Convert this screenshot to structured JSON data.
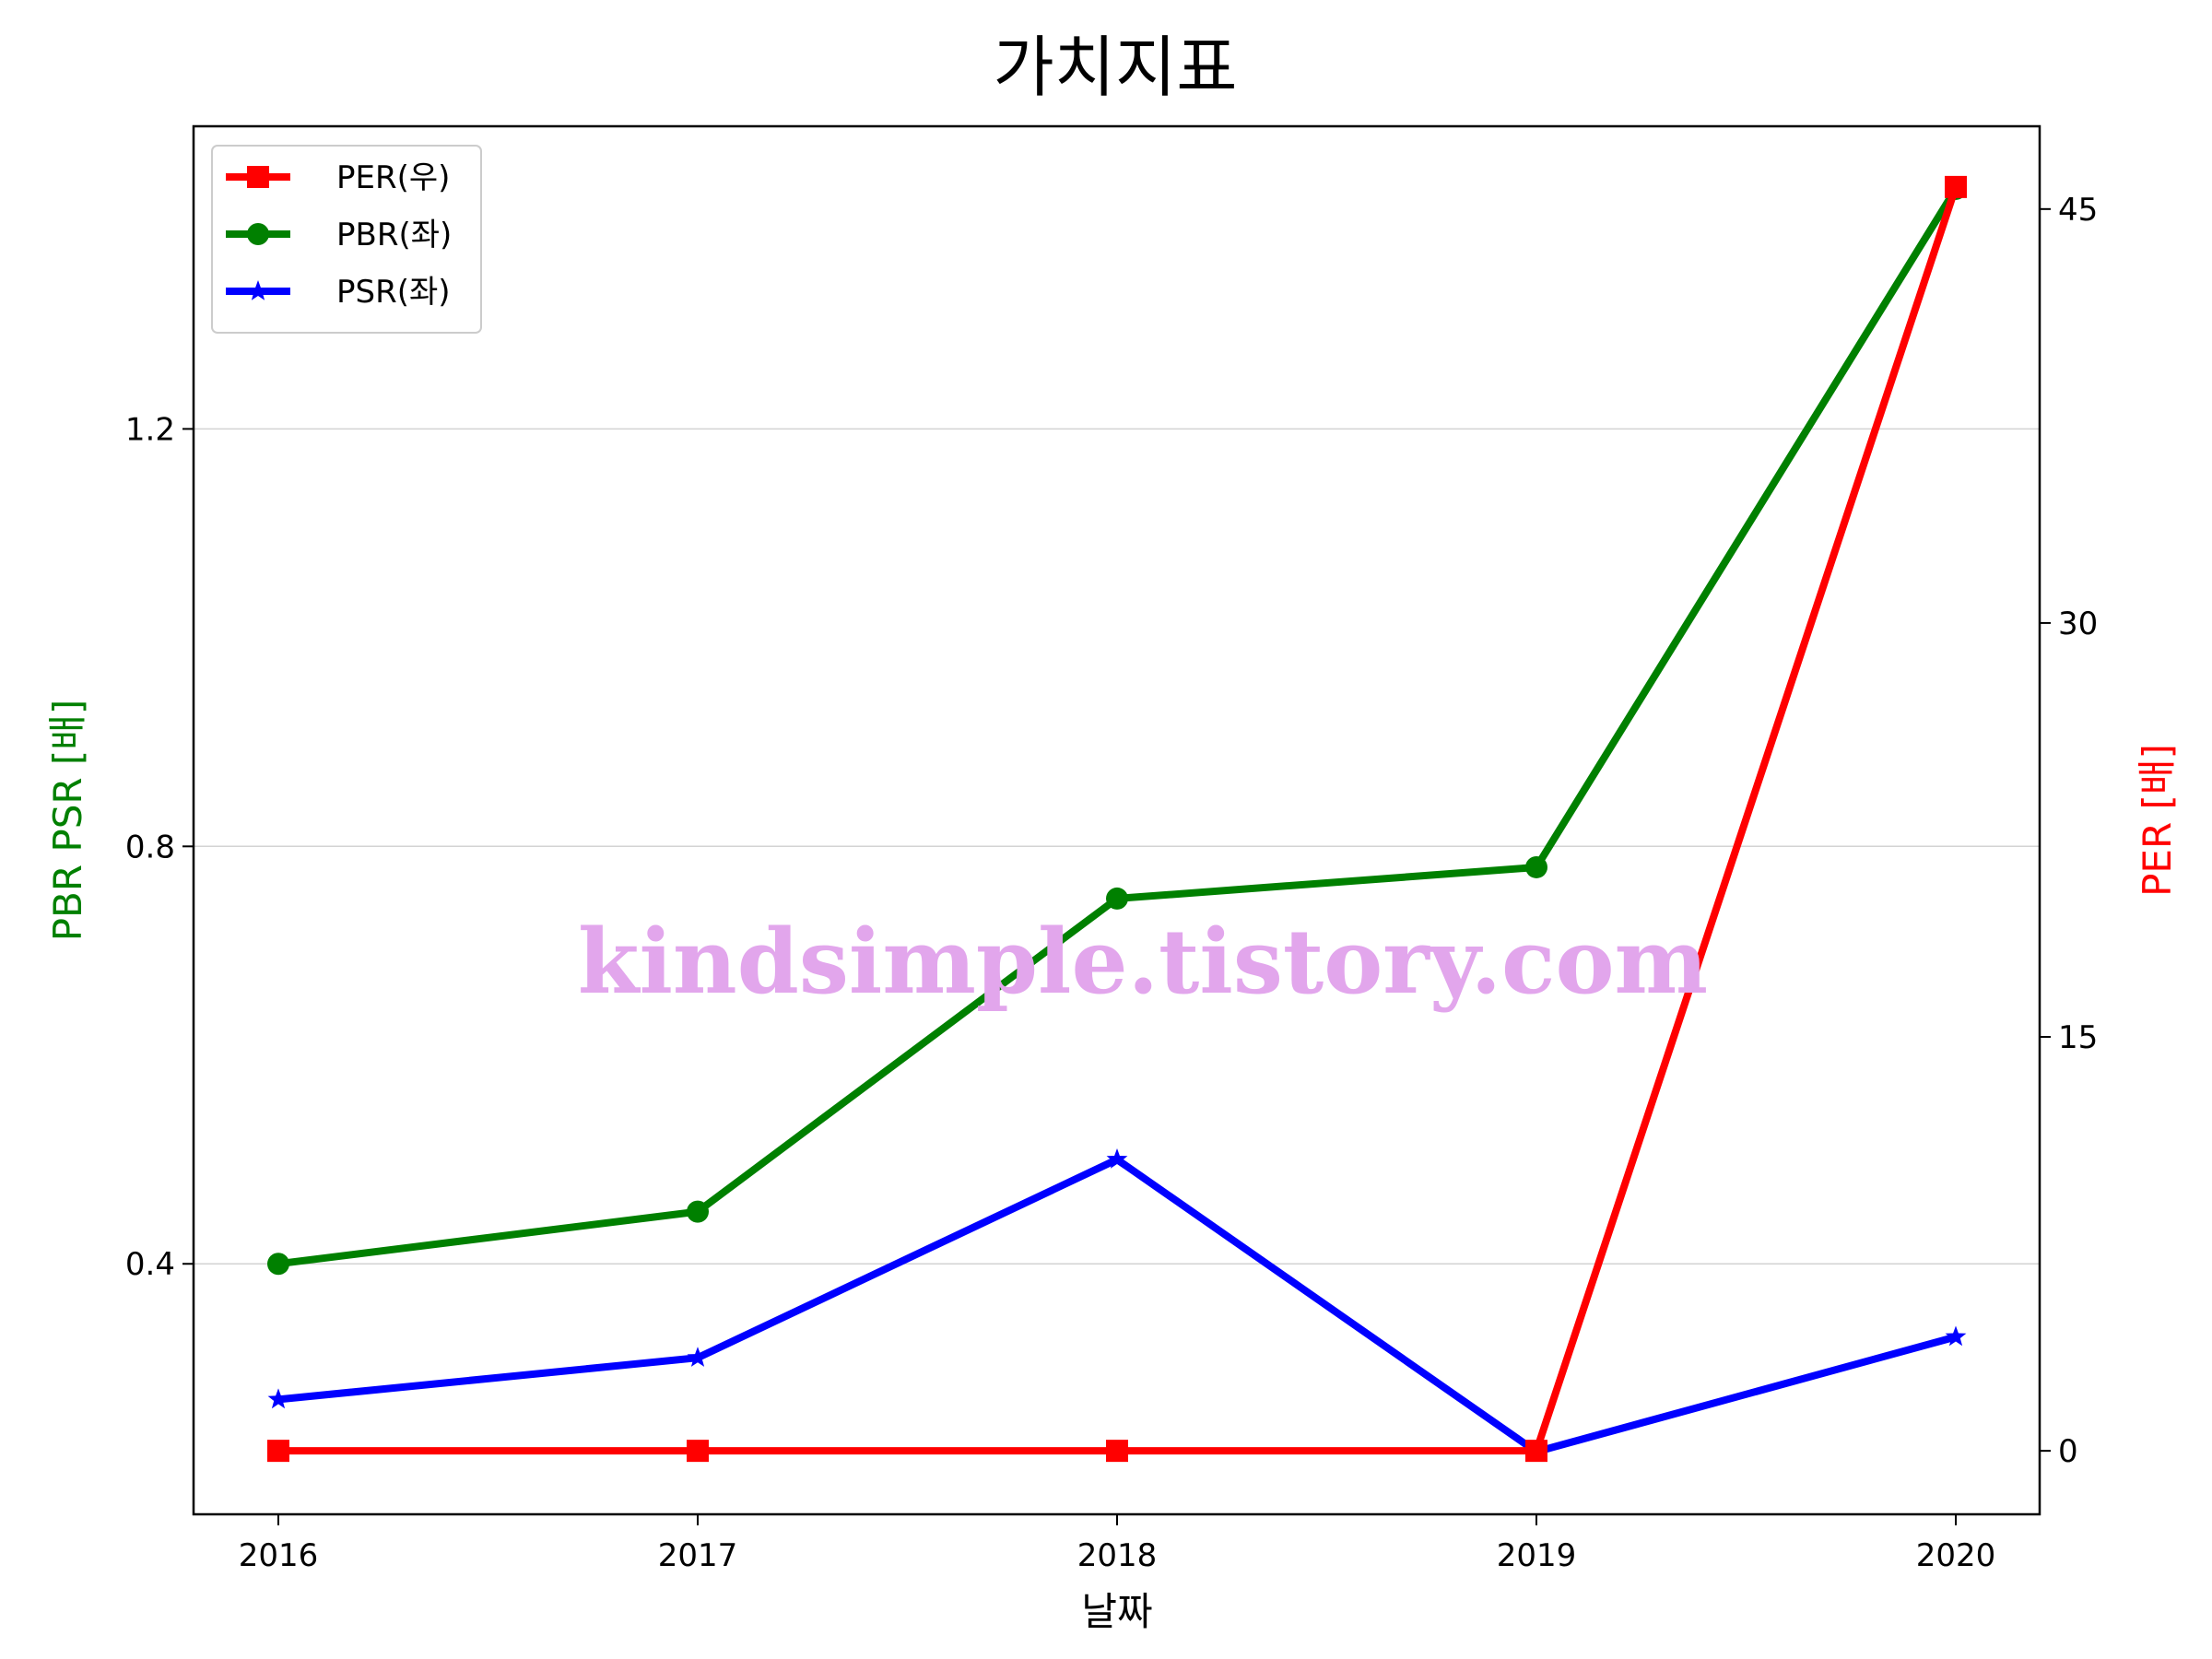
{
  "chart_data": {
    "type": "line",
    "title": "가치지표",
    "xlabel": "날짜",
    "ylabel_left": "PBR PSR [배]",
    "ylabel_right": "PER [배]",
    "categories": [
      "2016",
      "2017",
      "2018",
      "2019",
      "2020"
    ],
    "left_axis": {
      "ylim": [
        0.16,
        1.49
      ],
      "ticks": [
        0.4,
        0.8,
        1.2
      ],
      "tick_labels": [
        "0.4",
        "0.8",
        "1.2"
      ]
    },
    "right_axis": {
      "ylim": [
        -2.3,
        48.0
      ],
      "ticks": [
        0,
        15,
        30,
        45
      ],
      "tick_labels": [
        "0",
        "15",
        "30",
        "45"
      ]
    },
    "grid": "horizontal at left-axis ticks",
    "legend_placement": "upper-left",
    "series": [
      {
        "name": "PER(우)",
        "axis": "right",
        "color": "#ff0000",
        "marker": "square",
        "values": [
          0,
          0,
          0,
          0,
          45.8
        ]
      },
      {
        "name": "PBR(좌)",
        "axis": "left",
        "color": "#008000",
        "marker": "circle",
        "values": [
          0.4,
          0.45,
          0.75,
          0.78,
          1.43
        ]
      },
      {
        "name": "PSR(좌)",
        "axis": "left",
        "color": "#0000ff",
        "marker": "star",
        "values": [
          0.27,
          0.31,
          0.5,
          0.22,
          0.33
        ]
      }
    ],
    "watermark": {
      "text": "kindsimple.tistory.com",
      "color": "#e2a6ec"
    },
    "left_label_color": "#008000",
    "right_label_color": "#ff0000"
  }
}
